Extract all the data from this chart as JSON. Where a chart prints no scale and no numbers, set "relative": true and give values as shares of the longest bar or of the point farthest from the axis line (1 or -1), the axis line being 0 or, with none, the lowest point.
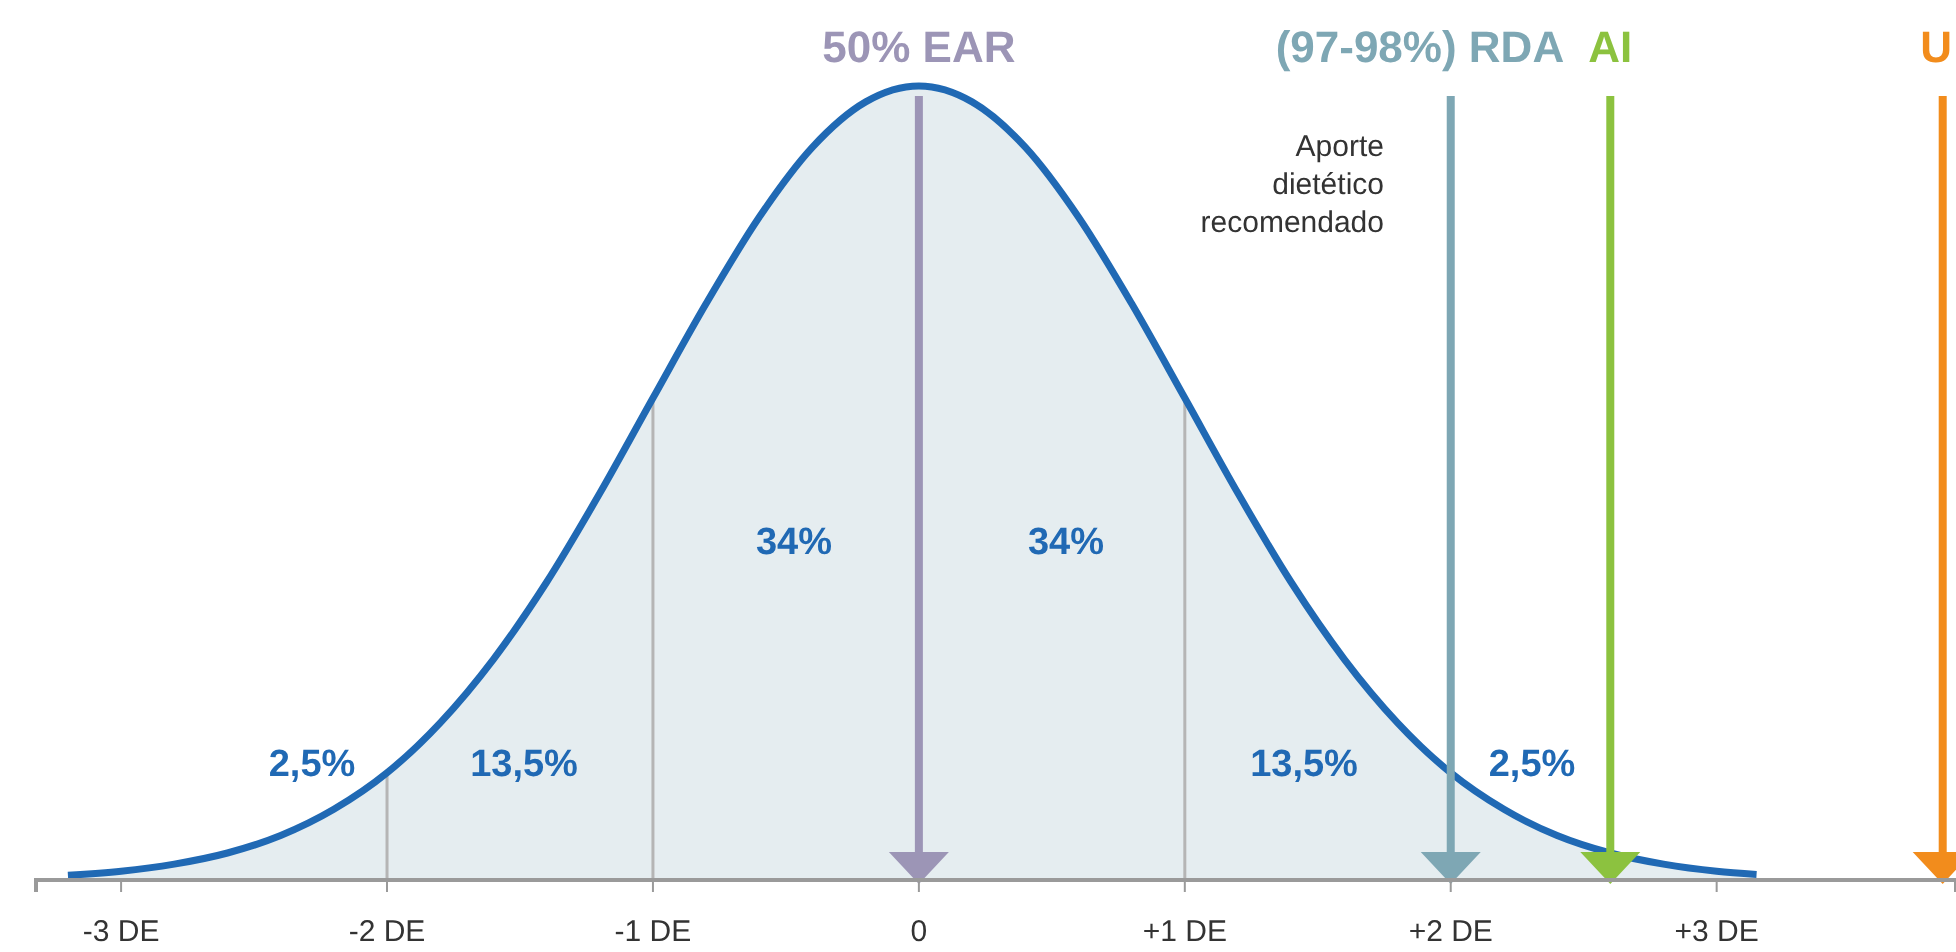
{
  "chart_data": {
    "type": "area",
    "relative": true,
    "x": [
      -3.2,
      -3.0,
      -2.8,
      -2.6,
      -2.4,
      -2.2,
      -2.0,
      -1.8,
      -1.6,
      -1.4,
      -1.2,
      -1.0,
      -0.8,
      -0.6,
      -0.4,
      -0.2,
      0,
      0.2,
      0.4,
      0.6,
      0.8,
      1.0,
      1.2,
      1.4,
      1.6,
      1.8,
      2.0,
      2.2,
      2.4,
      2.6,
      2.8,
      3.0,
      3.15
    ],
    "series": [
      {
        "color": "#2069b4",
        "values": [
          0.006,
          0.011,
          0.02,
          0.034,
          0.056,
          0.089,
          0.135,
          0.198,
          0.278,
          0.375,
          0.487,
          0.607,
          0.726,
          0.835,
          0.923,
          0.98,
          1,
          0.98,
          0.923,
          0.835,
          0.726,
          0.607,
          0.487,
          0.375,
          0.278,
          0.198,
          0.135,
          0.089,
          0.056,
          0.034,
          0.02,
          0.011,
          0.007
        ]
      }
    ],
    "xlim": [
      -3.32,
      3.9
    ],
    "xticks": [
      {
        "value": -3,
        "label": "-3 DE"
      },
      {
        "value": -2,
        "label": "-2 DE"
      },
      {
        "value": -1,
        "label": "-1 DE"
      },
      0,
      {
        "value": 1,
        "label": "+1 DE"
      },
      {
        "value": 2,
        "label": "+2 DE"
      },
      {
        "value": 3,
        "label": "+3 DE"
      }
    ],
    "ref_lines": [
      {
        "axis": "x",
        "value": -2,
        "color": "#b5b5b5"
      },
      {
        "axis": "x",
        "value": -1,
        "color": "#b5b5b5"
      },
      {
        "axis": "x",
        "value": 1,
        "color": "#b5b5b5"
      },
      {
        "axis": "x",
        "value": 0,
        "label": "50% EAR",
        "color": "#9c95b6"
      },
      {
        "axis": "x",
        "value": 2,
        "label": "(97-98%) RDA",
        "color": "#7ea7b4"
      },
      {
        "axis": "x",
        "value": 2.6,
        "label": "AI",
        "color": "#8cc23f"
      },
      {
        "axis": "x",
        "value": 3.85,
        "label": "U",
        "color": "#f28c1c"
      }
    ],
    "annotations": [
      "34%",
      "34%",
      "13,5%",
      "13,5%",
      "2,5%",
      "2,5%",
      "Aporte\ndietético\nrecomendado"
    ]
  }
}
